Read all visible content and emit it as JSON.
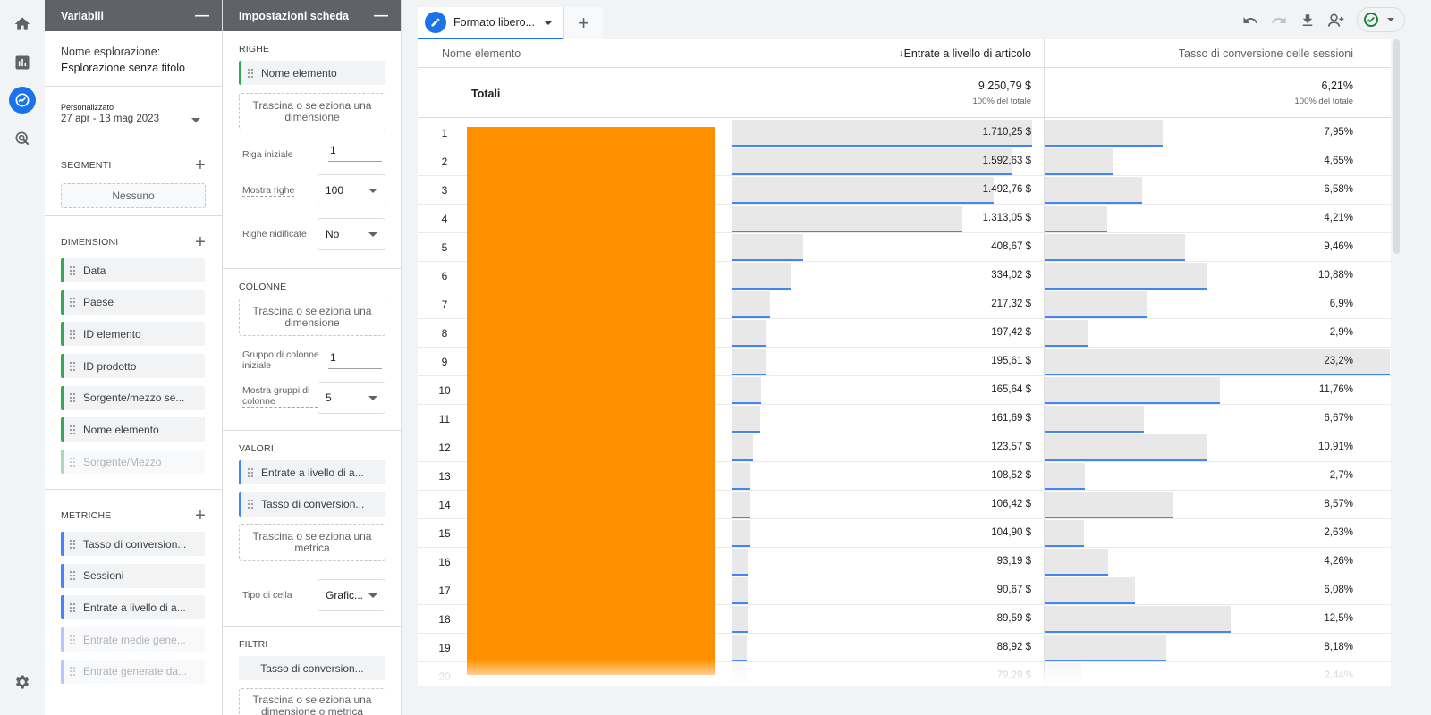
{
  "nav": {
    "items": [
      "home-icon",
      "reports-icon",
      "explore-icon",
      "advertising-icon"
    ],
    "settings": "gear-icon"
  },
  "variables": {
    "title": "Variabili",
    "name_label": "Nome esplorazione:",
    "name_value": "Esplorazione senza titolo",
    "date_tag": "Personalizzato",
    "date_range": "27 apr - 13 mag 2023",
    "segments_title": "SEGMENTI",
    "segments_empty": "Nessuno",
    "dimensions_title": "DIMENSIONI",
    "dimensions": [
      {
        "label": "Data",
        "active": true
      },
      {
        "label": "Paese",
        "active": true
      },
      {
        "label": "ID elemento",
        "active": true
      },
      {
        "label": "ID prodotto",
        "active": true
      },
      {
        "label": "Sorgente/mezzo se...",
        "active": true
      },
      {
        "label": "Nome elemento",
        "active": true
      },
      {
        "label": "Sorgente/Mezzo",
        "active": false
      }
    ],
    "metrics_title": "METRICHE",
    "metrics": [
      {
        "label": "Tasso di conversion...",
        "active": true
      },
      {
        "label": "Sessioni",
        "active": true
      },
      {
        "label": "Entrate a livello di a...",
        "active": true
      },
      {
        "label": "Entrate medie gene...",
        "active": false
      },
      {
        "label": "Entrate generate da...",
        "active": false
      }
    ]
  },
  "settings": {
    "title": "Impostazioni scheda",
    "rows_title": "RIGHE",
    "rows_chip": "Nome elemento",
    "drop_dimension": "Trascina o seleziona una dimensione",
    "start_row_label": "Riga iniziale",
    "start_row_value": "1",
    "show_rows_label": "Mostra righe",
    "show_rows_value": "100",
    "nested_rows_label": "Righe nidificate",
    "nested_rows_value": "No",
    "columns_title": "COLONNE",
    "drop_dimension_cols": "Trascina o seleziona una dimensione",
    "start_col_group_label": "Gruppo di colonne iniziale",
    "start_col_group_value": "1",
    "show_col_groups_label": "Mostra gruppi di colonne",
    "show_col_groups_value": "5",
    "values_title": "VALORI",
    "values_chips": [
      "Entrate a livello di a...",
      "Tasso di conversion..."
    ],
    "drop_metric": "Trascina o seleziona una metrica",
    "cell_type_label": "Tipo di cella",
    "cell_type_value": "Grafic...",
    "filters_title": "FILTRI",
    "filters_chip": "Tasso di conversion...",
    "drop_filter": "Trascina o seleziona una dimensione o metrica"
  },
  "tabs": {
    "active_label": "Formato libero...",
    "add": "+"
  },
  "toolbar": {
    "icons": [
      "undo-icon",
      "redo-icon",
      "download-icon",
      "share-icon",
      "check-icon"
    ]
  },
  "table": {
    "col_item": "Nome elemento",
    "col_revenue": "Entrate a livello di articolo",
    "col_conv": "Tasso di conversione delle sessioni",
    "sort_arrow": "↓",
    "totals_label": "Totali",
    "totals_revenue": "9.250,79 $",
    "totals_conv": "6,21%",
    "pct_of_total": "100% del totale",
    "rows": [
      {
        "n": "1",
        "rev": "1.710,25 $",
        "rev_v": 1710.25,
        "conv": "7,95%",
        "conv_v": 7.95
      },
      {
        "n": "2",
        "rev": "1.592,63 $",
        "rev_v": 1592.63,
        "conv": "4,65%",
        "conv_v": 4.65
      },
      {
        "n": "3",
        "rev": "1.492,76 $",
        "rev_v": 1492.76,
        "conv": "6,58%",
        "conv_v": 6.58
      },
      {
        "n": "4",
        "rev": "1.313,05 $",
        "rev_v": 1313.05,
        "conv": "4,21%",
        "conv_v": 4.21
      },
      {
        "n": "5",
        "rev": "408,67 $",
        "rev_v": 408.67,
        "conv": "9,46%",
        "conv_v": 9.46
      },
      {
        "n": "6",
        "rev": "334,02 $",
        "rev_v": 334.02,
        "conv": "10,88%",
        "conv_v": 10.88
      },
      {
        "n": "7",
        "rev": "217,32 $",
        "rev_v": 217.32,
        "conv": "6,9%",
        "conv_v": 6.9
      },
      {
        "n": "8",
        "rev": "197,42 $",
        "rev_v": 197.42,
        "conv": "2,9%",
        "conv_v": 2.9
      },
      {
        "n": "9",
        "rev": "195,61 $",
        "rev_v": 195.61,
        "conv": "23,2%",
        "conv_v": 23.2
      },
      {
        "n": "10",
        "rev": "165,64 $",
        "rev_v": 165.64,
        "conv": "11,76%",
        "conv_v": 11.76
      },
      {
        "n": "11",
        "rev": "161,69 $",
        "rev_v": 161.69,
        "conv": "6,67%",
        "conv_v": 6.67
      },
      {
        "n": "12",
        "rev": "123,57 $",
        "rev_v": 123.57,
        "conv": "10,91%",
        "conv_v": 10.91
      },
      {
        "n": "13",
        "rev": "108,52 $",
        "rev_v": 108.52,
        "conv": "2,7%",
        "conv_v": 2.7
      },
      {
        "n": "14",
        "rev": "106,42 $",
        "rev_v": 106.42,
        "conv": "8,57%",
        "conv_v": 8.57
      },
      {
        "n": "15",
        "rev": "104,90 $",
        "rev_v": 104.9,
        "conv": "2,63%",
        "conv_v": 2.63
      },
      {
        "n": "16",
        "rev": "93,19 $",
        "rev_v": 93.19,
        "conv": "4,26%",
        "conv_v": 4.26
      },
      {
        "n": "17",
        "rev": "90,67 $",
        "rev_v": 90.67,
        "conv": "6,08%",
        "conv_v": 6.08
      },
      {
        "n": "18",
        "rev": "89,59 $",
        "rev_v": 89.59,
        "conv": "12,5%",
        "conv_v": 12.5
      },
      {
        "n": "19",
        "rev": "88,92 $",
        "rev_v": 88.92,
        "conv": "8,18%",
        "conv_v": 8.18
      },
      {
        "n": "20",
        "rev": "79,29 $",
        "rev_v": 79.29,
        "conv": "2,44%",
        "conv_v": 2.44
      }
    ]
  },
  "colors": {
    "accent": "#1a73e8",
    "redacted": "#ff9100",
    "header_bg": "#5f6368",
    "dimension": "#34a853",
    "metric": "#4285f4"
  }
}
